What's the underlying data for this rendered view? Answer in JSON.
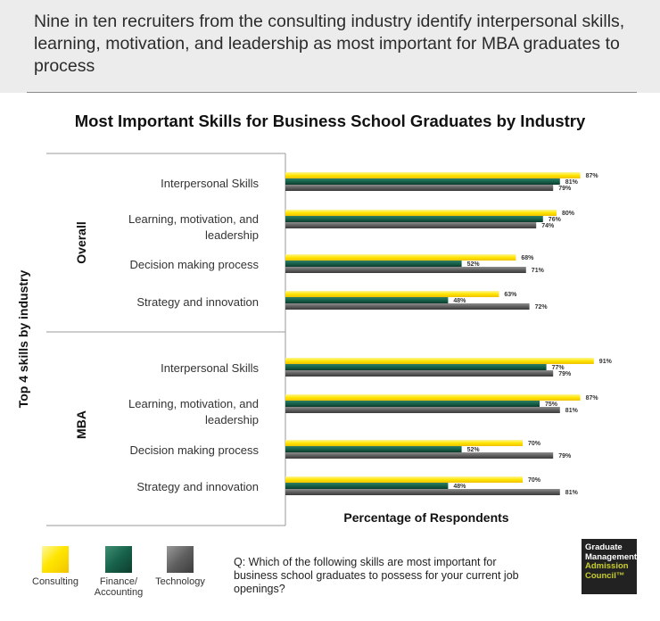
{
  "headline": "Nine in ten recruiters from the consulting industry identify interpersonal skills, learning, motivation, and leadership as most important for MBA graduates to process",
  "chart_data": {
    "type": "bar",
    "orientation": "horizontal",
    "title": "Most Important Skills for Business School Graduates by Industry",
    "xlabel": "Percentage of Respondents",
    "ylabel": "Top 4 skills by industry",
    "xlim": [
      0,
      100
    ],
    "grid": false,
    "legend_position": "bottom-left",
    "series": [
      {
        "name": "Consulting",
        "color": "#ffe600"
      },
      {
        "name": "Finance/ Accounting",
        "color": "#17614a"
      },
      {
        "name": "Technology",
        "color": "#5f5f5f"
      }
    ],
    "groups": [
      {
        "label": "Overall",
        "categories": [
          {
            "label": "Interpersonal Skills",
            "values": [
              87,
              81,
              79
            ]
          },
          {
            "label": "Learning, motivation, and leadership",
            "values": [
              80,
              76,
              74
            ]
          },
          {
            "label": "Decision making process",
            "values": [
              68,
              52,
              71
            ]
          },
          {
            "label": "Strategy and innovation",
            "values": [
              63,
              48,
              72
            ]
          }
        ]
      },
      {
        "label": "MBA",
        "categories": [
          {
            "label": "Interpersonal Skills",
            "values": [
              91,
              77,
              79
            ]
          },
          {
            "label": "Learning, motivation, and leadership",
            "values": [
              87,
              75,
              81
            ]
          },
          {
            "label": "Decision making process",
            "values": [
              70,
              52,
              79
            ]
          },
          {
            "label": "Strategy and innovation",
            "values": [
              70,
              48,
              81
            ]
          }
        ]
      }
    ],
    "value_suffix": "%"
  },
  "legend": [
    {
      "label": "Consulting"
    },
    {
      "label": "Finance/ Accounting"
    },
    {
      "label": "Technology"
    }
  ],
  "question": "Q: Which of the following skills are most important for business school graduates to possess for your current job openings?",
  "logo": {
    "line1": "Graduate",
    "line2": "Management",
    "line3": "Admission",
    "line4": "Council™"
  }
}
